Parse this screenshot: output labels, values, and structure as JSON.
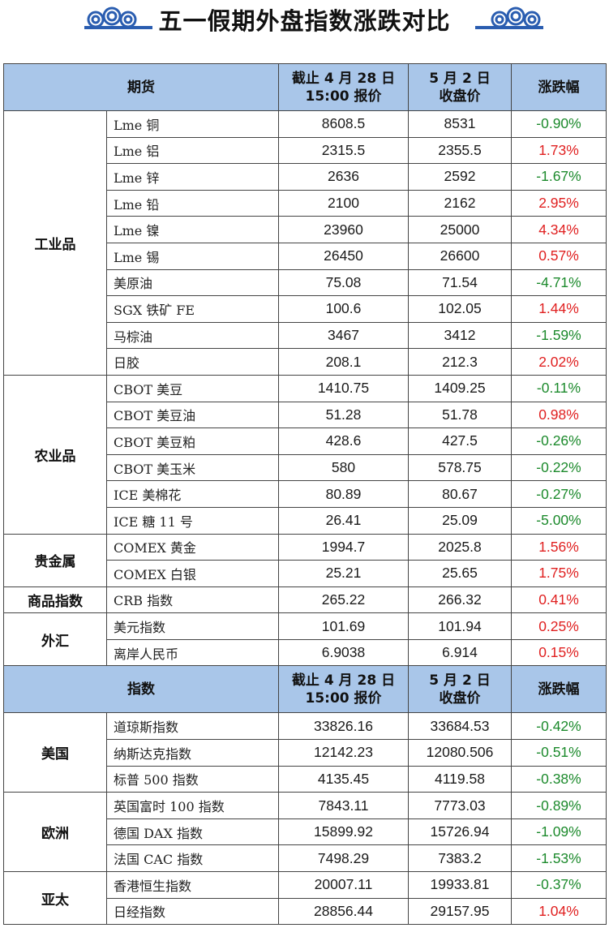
{
  "title": "五一假期外盘指数涨跌对比",
  "colors": {
    "up": "#e02020",
    "down": "#1c8a2c",
    "header_bg": "#a9c6e9",
    "cloud": "#2a5db0"
  },
  "futures_header": {
    "col1": "期货",
    "col2_line1": "截止 4 月 28 日",
    "col2_line2": "15:00 报价",
    "col3_line1": "5 月 2 日",
    "col3_line2": "收盘价",
    "col4": "涨跌幅"
  },
  "futures_groups": [
    {
      "category": "工业品",
      "items": [
        {
          "name": "Lme 铜",
          "before": "8608.5",
          "close": "8531",
          "change": "-0.90%",
          "dir": "down"
        },
        {
          "name": "Lme 铝",
          "before": "2315.5",
          "close": "2355.5",
          "change": "1.73%",
          "dir": "up"
        },
        {
          "name": "Lme 锌",
          "before": "2636",
          "close": "2592",
          "change": "-1.67%",
          "dir": "down"
        },
        {
          "name": "Lme 铅",
          "before": "2100",
          "close": "2162",
          "change": "2.95%",
          "dir": "up"
        },
        {
          "name": "Lme 镍",
          "before": "23960",
          "close": "25000",
          "change": "4.34%",
          "dir": "up"
        },
        {
          "name": "Lme 锡",
          "before": "26450",
          "close": "26600",
          "change": "0.57%",
          "dir": "up"
        },
        {
          "name": "美原油",
          "before": "75.08",
          "close": "71.54",
          "change": "-4.71%",
          "dir": "down"
        },
        {
          "name": "SGX 铁矿 FE",
          "before": "100.6",
          "close": "102.05",
          "change": "1.44%",
          "dir": "up"
        },
        {
          "name": "马棕油",
          "before": "3467",
          "close": "3412",
          "change": "-1.59%",
          "dir": "down"
        },
        {
          "name": "日胶",
          "before": "208.1",
          "close": "212.3",
          "change": "2.02%",
          "dir": "up"
        }
      ]
    },
    {
      "category": "农业品",
      "items": [
        {
          "name": "CBOT 美豆",
          "before": "1410.75",
          "close": "1409.25",
          "change": "-0.11%",
          "dir": "down"
        },
        {
          "name": "CBOT 美豆油",
          "before": "51.28",
          "close": "51.78",
          "change": "0.98%",
          "dir": "up"
        },
        {
          "name": "CBOT 美豆粕",
          "before": "428.6",
          "close": "427.5",
          "change": "-0.26%",
          "dir": "down"
        },
        {
          "name": "CBOT 美玉米",
          "before": "580",
          "close": "578.75",
          "change": "-0.22%",
          "dir": "down"
        },
        {
          "name": "ICE 美棉花",
          "before": "80.89",
          "close": "80.67",
          "change": "-0.27%",
          "dir": "down"
        },
        {
          "name": "ICE 糖 11 号",
          "before": "26.41",
          "close": "25.09",
          "change": "-5.00%",
          "dir": "down"
        }
      ]
    },
    {
      "category": "贵金属",
      "items": [
        {
          "name": "COMEX 黄金",
          "before": "1994.7",
          "close": "2025.8",
          "change": "1.56%",
          "dir": "up"
        },
        {
          "name": "COMEX 白银",
          "before": "25.21",
          "close": "25.65",
          "change": "1.75%",
          "dir": "up"
        }
      ]
    },
    {
      "category": "商品指数",
      "items": [
        {
          "name": "CRB 指数",
          "before": "265.22",
          "close": "266.32",
          "change": "0.41%",
          "dir": "up"
        }
      ]
    },
    {
      "category": "外汇",
      "items": [
        {
          "name": "美元指数",
          "before": "101.69",
          "close": "101.94",
          "change": "0.25%",
          "dir": "up"
        },
        {
          "name": "离岸人民币",
          "before": "6.9038",
          "close": "6.914",
          "change": "0.15%",
          "dir": "up"
        }
      ]
    }
  ],
  "index_header": {
    "col1": "指数",
    "col2_line1": "截止 4 月 28 日",
    "col2_line2": "15:00 报价",
    "col3_line1": "5 月 2 日",
    "col3_line2": "收盘价",
    "col4": "涨跌幅"
  },
  "index_groups": [
    {
      "category": "美国",
      "items": [
        {
          "name": "道琼斯指数",
          "before": "33826.16",
          "close": "33684.53",
          "change": "-0.42%",
          "dir": "down"
        },
        {
          "name": "纳斯达克指数",
          "before": "12142.23",
          "close": "12080.506",
          "change": "-0.51%",
          "dir": "down"
        },
        {
          "name": "标普 500 指数",
          "before": "4135.45",
          "close": "4119.58",
          "change": "-0.38%",
          "dir": "down"
        }
      ]
    },
    {
      "category": "欧洲",
      "items": [
        {
          "name": "英国富时 100 指数",
          "before": "7843.11",
          "close": "7773.03",
          "change": "-0.89%",
          "dir": "down"
        },
        {
          "name": "德国 DAX 指数",
          "before": "15899.92",
          "close": "15726.94",
          "change": "-1.09%",
          "dir": "down"
        },
        {
          "name": "法国 CAC 指数",
          "before": "7498.29",
          "close": "7383.2",
          "change": "-1.53%",
          "dir": "down"
        }
      ]
    },
    {
      "category": "亚太",
      "items": [
        {
          "name": "香港恒生指数",
          "before": "20007.11",
          "close": "19933.81",
          "change": "-0.37%",
          "dir": "down"
        },
        {
          "name": "日经指数",
          "before": "28856.44",
          "close": "29157.95",
          "change": "1.04%",
          "dir": "up"
        }
      ]
    }
  ]
}
